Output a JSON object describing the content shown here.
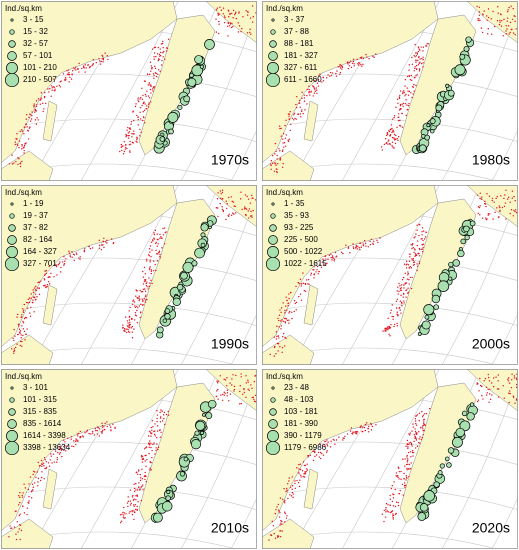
{
  "panels": [
    {
      "legend_title": "Ind./sq.km",
      "legend": [
        "3 - 15",
        "15 - 32",
        "32 - 57",
        "57 - 101",
        "101 - 210",
        "210 - 507"
      ],
      "label": "1970s"
    },
    {
      "legend_title": "Ind./sq.km",
      "legend": [
        "3 - 37",
        "37 - 88",
        "88 - 181",
        "181 - 327",
        "327 - 611",
        "611 - 1660"
      ],
      "label": "1980s"
    },
    {
      "legend_title": "Ind./sq.km",
      "legend": [
        "1 - 19",
        "19 - 37",
        "37 - 82",
        "82 - 164",
        "164 - 327",
        "327 - 701"
      ],
      "label": "1990s"
    },
    {
      "legend_title": "Ind./sq.km",
      "legend": [
        "1 - 35",
        "35 - 93",
        "93 - 225",
        "225 - 500",
        "500 - 1022",
        "1022 - 1615"
      ],
      "label": "2000s"
    },
    {
      "legend_title": "Ind./sq.km",
      "legend": [
        "3 - 101",
        "101 - 315",
        "315 - 835",
        "835 - 1614",
        "1614 - 3398",
        "3398 - 13634"
      ],
      "label": "2010s"
    },
    {
      "legend_title": "Ind./sq.km",
      "legend": [
        "23 - 48",
        "48 - 103",
        "103 - 181",
        "181 - 390",
        "390 - 1179",
        "1179 - 6986"
      ],
      "label": "2020s"
    }
  ]
}
